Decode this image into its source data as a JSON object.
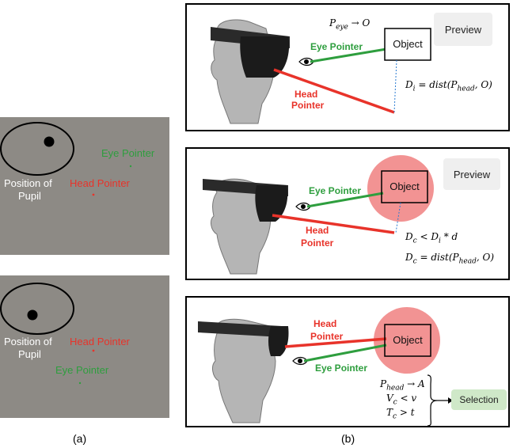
{
  "panel_a": {
    "top": {
      "eye_label": "Eye Pointer",
      "head_label": "Head Pointer",
      "pupil_label_1": "Position of",
      "pupil_label_2": "Pupil"
    },
    "bottom": {
      "eye_label": "Eye Pointer",
      "head_label": "Head Pointer",
      "pupil_label_1": "Position of",
      "pupil_label_2": "Pupil"
    },
    "caption": "(a)"
  },
  "panel_b": {
    "caption": "(b)",
    "p1": {
      "preview": "Preview",
      "object": "Object",
      "eye_pointer": "Eye Pointer",
      "head_pointer_1": "Head",
      "head_pointer_2": "Pointer",
      "formula_top": "P_eye → O",
      "formula_dist": "D_i = dist(P_head, O)"
    },
    "p2": {
      "preview": "Preview",
      "object": "Object",
      "eye_pointer": "Eye Pointer",
      "head_pointer_1": "Head",
      "head_pointer_2": "Pointer",
      "formula_1": "D_c < D_i * d",
      "formula_2": "D_c = dist(P_head, O)"
    },
    "p3": {
      "object": "Object",
      "eye_pointer": "Eye Pointer",
      "head_pointer_1": "Head",
      "head_pointer_2": "Pointer",
      "cond_1": "P_head → A",
      "cond_2": "V_c < v",
      "cond_3": "T_c > t",
      "selection": "Selection"
    }
  },
  "colors": {
    "eye": "#2e9e3e",
    "head": "#e8332a",
    "distance": "#2a7bd1",
    "highlight": "#f08080"
  }
}
